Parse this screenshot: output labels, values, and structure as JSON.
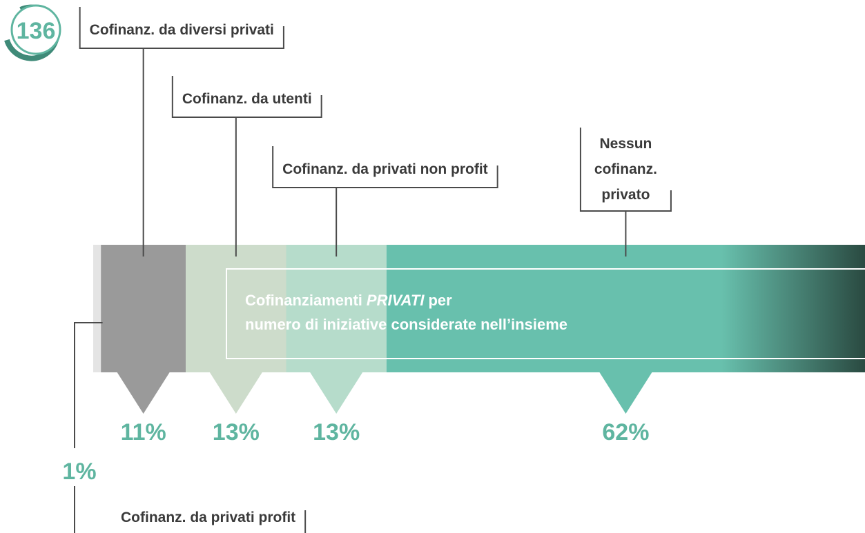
{
  "page_number": "136",
  "chart_data": {
    "type": "stacked-bar",
    "title": [
      "Cofinanziamenti",
      "PRIVATI",
      "per",
      "numero di iniziative considerate nell’insieme"
    ],
    "categories": [
      "Cofinanz. da privati profit",
      "Cofinanz. da diversi privati",
      "Cofinanz. da utenti",
      "Cofinanz. da privati non profit",
      "Nessun cofinanz. privato"
    ],
    "values": [
      1,
      11,
      13,
      13,
      62
    ],
    "value_labels": [
      "1%",
      "11%",
      "13%",
      "13%",
      "62%"
    ],
    "colors": [
      "#e4e4e4",
      "#9a9a9a",
      "#cddccb",
      "#b6dccb",
      "#68c0ad"
    ],
    "xlim": [
      0,
      100
    ]
  }
}
